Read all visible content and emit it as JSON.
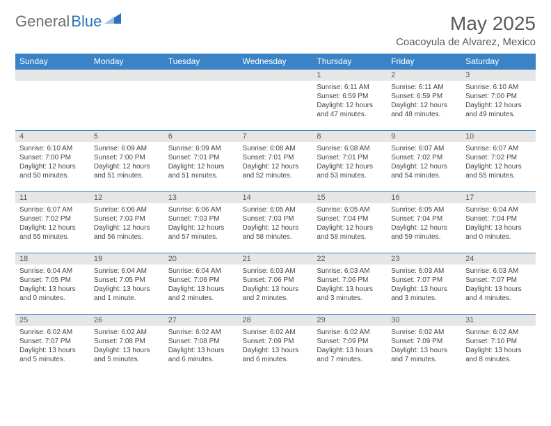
{
  "logo": {
    "general": "General",
    "blue": "Blue"
  },
  "header": {
    "month_title": "May 2025",
    "location": "Coacoyula de Alvarez, Mexico"
  },
  "colors": {
    "header_bg": "#3a83c5",
    "band_bg": "#e6e6e6",
    "rule": "#3a83c5",
    "text": "#444444",
    "title_text": "#5a5a5a",
    "logo_gray": "#6f6f6f",
    "logo_blue": "#2b74b8"
  },
  "day_labels": [
    "Sunday",
    "Monday",
    "Tuesday",
    "Wednesday",
    "Thursday",
    "Friday",
    "Saturday"
  ],
  "weeks": [
    [
      {
        "n": "",
        "sr": "",
        "ss": "",
        "dl": ""
      },
      {
        "n": "",
        "sr": "",
        "ss": "",
        "dl": ""
      },
      {
        "n": "",
        "sr": "",
        "ss": "",
        "dl": ""
      },
      {
        "n": "",
        "sr": "",
        "ss": "",
        "dl": ""
      },
      {
        "n": "1",
        "sr": "6:11 AM",
        "ss": "6:59 PM",
        "dl": "12 hours and 47 minutes."
      },
      {
        "n": "2",
        "sr": "6:11 AM",
        "ss": "6:59 PM",
        "dl": "12 hours and 48 minutes."
      },
      {
        "n": "3",
        "sr": "6:10 AM",
        "ss": "7:00 PM",
        "dl": "12 hours and 49 minutes."
      }
    ],
    [
      {
        "n": "4",
        "sr": "6:10 AM",
        "ss": "7:00 PM",
        "dl": "12 hours and 50 minutes."
      },
      {
        "n": "5",
        "sr": "6:09 AM",
        "ss": "7:00 PM",
        "dl": "12 hours and 51 minutes."
      },
      {
        "n": "6",
        "sr": "6:09 AM",
        "ss": "7:01 PM",
        "dl": "12 hours and 51 minutes."
      },
      {
        "n": "7",
        "sr": "6:08 AM",
        "ss": "7:01 PM",
        "dl": "12 hours and 52 minutes."
      },
      {
        "n": "8",
        "sr": "6:08 AM",
        "ss": "7:01 PM",
        "dl": "12 hours and 53 minutes."
      },
      {
        "n": "9",
        "sr": "6:07 AM",
        "ss": "7:02 PM",
        "dl": "12 hours and 54 minutes."
      },
      {
        "n": "10",
        "sr": "6:07 AM",
        "ss": "7:02 PM",
        "dl": "12 hours and 55 minutes."
      }
    ],
    [
      {
        "n": "11",
        "sr": "6:07 AM",
        "ss": "7:02 PM",
        "dl": "12 hours and 55 minutes."
      },
      {
        "n": "12",
        "sr": "6:06 AM",
        "ss": "7:03 PM",
        "dl": "12 hours and 56 minutes."
      },
      {
        "n": "13",
        "sr": "6:06 AM",
        "ss": "7:03 PM",
        "dl": "12 hours and 57 minutes."
      },
      {
        "n": "14",
        "sr": "6:05 AM",
        "ss": "7:03 PM",
        "dl": "12 hours and 58 minutes."
      },
      {
        "n": "15",
        "sr": "6:05 AM",
        "ss": "7:04 PM",
        "dl": "12 hours and 58 minutes."
      },
      {
        "n": "16",
        "sr": "6:05 AM",
        "ss": "7:04 PM",
        "dl": "12 hours and 59 minutes."
      },
      {
        "n": "17",
        "sr": "6:04 AM",
        "ss": "7:04 PM",
        "dl": "13 hours and 0 minutes."
      }
    ],
    [
      {
        "n": "18",
        "sr": "6:04 AM",
        "ss": "7:05 PM",
        "dl": "13 hours and 0 minutes."
      },
      {
        "n": "19",
        "sr": "6:04 AM",
        "ss": "7:05 PM",
        "dl": "13 hours and 1 minute."
      },
      {
        "n": "20",
        "sr": "6:04 AM",
        "ss": "7:06 PM",
        "dl": "13 hours and 2 minutes."
      },
      {
        "n": "21",
        "sr": "6:03 AM",
        "ss": "7:06 PM",
        "dl": "13 hours and 2 minutes."
      },
      {
        "n": "22",
        "sr": "6:03 AM",
        "ss": "7:06 PM",
        "dl": "13 hours and 3 minutes."
      },
      {
        "n": "23",
        "sr": "6:03 AM",
        "ss": "7:07 PM",
        "dl": "13 hours and 3 minutes."
      },
      {
        "n": "24",
        "sr": "6:03 AM",
        "ss": "7:07 PM",
        "dl": "13 hours and 4 minutes."
      }
    ],
    [
      {
        "n": "25",
        "sr": "6:02 AM",
        "ss": "7:07 PM",
        "dl": "13 hours and 5 minutes."
      },
      {
        "n": "26",
        "sr": "6:02 AM",
        "ss": "7:08 PM",
        "dl": "13 hours and 5 minutes."
      },
      {
        "n": "27",
        "sr": "6:02 AM",
        "ss": "7:08 PM",
        "dl": "13 hours and 6 minutes."
      },
      {
        "n": "28",
        "sr": "6:02 AM",
        "ss": "7:09 PM",
        "dl": "13 hours and 6 minutes."
      },
      {
        "n": "29",
        "sr": "6:02 AM",
        "ss": "7:09 PM",
        "dl": "13 hours and 7 minutes."
      },
      {
        "n": "30",
        "sr": "6:02 AM",
        "ss": "7:09 PM",
        "dl": "13 hours and 7 minutes."
      },
      {
        "n": "31",
        "sr": "6:02 AM",
        "ss": "7:10 PM",
        "dl": "13 hours and 8 minutes."
      }
    ]
  ],
  "labels": {
    "sunrise": "Sunrise:",
    "sunset": "Sunset:",
    "daylight": "Daylight:"
  }
}
